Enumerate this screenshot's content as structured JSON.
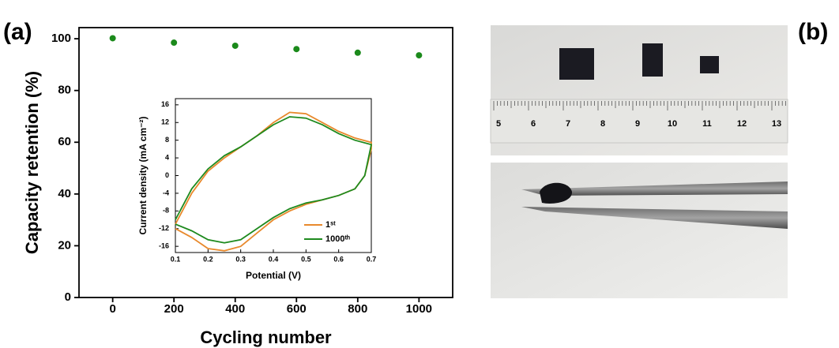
{
  "chart_data": [
    {
      "type": "scatter",
      "xlabel": "Cycling number",
      "ylabel": "Capacity retention (%)",
      "x": [
        0,
        200,
        400,
        600,
        800,
        1000
      ],
      "values": [
        100.2,
        98.5,
        97.3,
        96,
        94.6,
        93.6
      ],
      "color": "#1b8a1b",
      "xlim": [
        -110,
        1110
      ],
      "ylim": [
        0,
        104.3
      ],
      "xticks": [
        0,
        200,
        400,
        600,
        800,
        1000
      ],
      "yticks": [
        0,
        20,
        40,
        60,
        80,
        100
      ]
    },
    {
      "type": "line",
      "xlabel": "Potential (V)",
      "ylabel": "Current density (mA cm⁻²)",
      "x": [
        0.1,
        0.15,
        0.2,
        0.25,
        0.3,
        0.35,
        0.4,
        0.45,
        0.5,
        0.55,
        0.6,
        0.65,
        0.7,
        0.7,
        0.68,
        0.65,
        0.6,
        0.55,
        0.5,
        0.45,
        0.4,
        0.35,
        0.3,
        0.25,
        0.2,
        0.15,
        0.1
      ],
      "series": [
        {
          "name": "1ˢᵗ",
          "color": "#e8892c",
          "values": [
            -11,
            -4,
            1,
            4,
            6.5,
            9,
            12,
            14.3,
            14,
            12,
            10,
            8.5,
            7.5,
            6,
            0,
            -3,
            -4.5,
            -5.5,
            -6.5,
            -8,
            -10,
            -13,
            -16,
            -17,
            -16.5,
            -14,
            -12
          ]
        },
        {
          "name": "1000ᵗʰ",
          "color": "#1e8a1e",
          "values": [
            -10,
            -3,
            1.5,
            4.5,
            6.5,
            9,
            11.5,
            13.3,
            13,
            11.5,
            9.5,
            8,
            7,
            7,
            0,
            -3,
            -4.5,
            -5.5,
            -6.2,
            -7.5,
            -9.5,
            -12,
            -14.5,
            -15.2,
            -14.5,
            -12.5,
            -11
          ]
        }
      ],
      "xlim": [
        0.1,
        0.7
      ],
      "ylim": [
        -17.4,
        17.4
      ],
      "xticks": [
        0.1,
        0.2,
        0.3,
        0.4,
        0.5,
        0.6,
        0.7
      ],
      "yticks": [
        -16,
        -12,
        -8,
        -4,
        0,
        4,
        8,
        12,
        16
      ],
      "legend": "lower right"
    }
  ],
  "labels": {
    "a": "(a)",
    "b": "(b)"
  },
  "photo": {
    "ruler_labels": [
      5,
      6,
      7,
      8,
      9,
      10,
      11,
      12,
      13
    ]
  }
}
